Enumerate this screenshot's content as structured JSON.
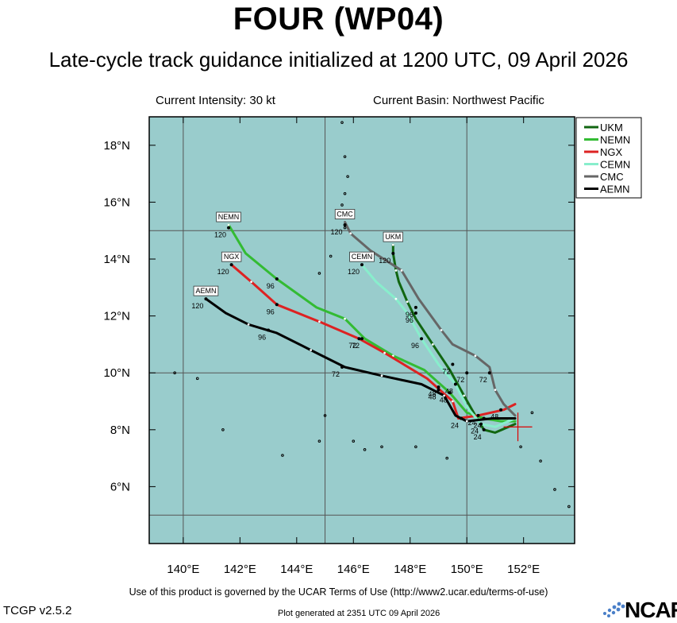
{
  "header": {
    "title": "FOUR (WP04)",
    "subtitle": "Late-cycle track guidance initialized at 1200 UTC, 09 April 2026",
    "current_intensity": "Current Intensity: 30 kt",
    "current_basin": "Current Basin: Northwest Pacific"
  },
  "footer": {
    "terms": "Use of this product is governed by the UCAR Terms of Use (http://www2.ucar.edu/terms-of-use)",
    "version": "TCGP v2.5.2",
    "generated": "Plot generated at 2351 UTC  09 April 2026",
    "logo_text": "NCAR"
  },
  "chart_data": {
    "type": "line",
    "xlim": [
      138.8,
      153.8
    ],
    "ylim": [
      4.0,
      19.0
    ],
    "x_ticks": [
      140,
      142,
      144,
      146,
      148,
      150,
      152
    ],
    "x_tick_labels": [
      "140°E",
      "142°E",
      "144°E",
      "146°E",
      "148°E",
      "150°E",
      "152°E"
    ],
    "y_ticks": [
      6,
      8,
      10,
      12,
      14,
      16,
      18
    ],
    "y_tick_labels": [
      "6°N",
      "8°N",
      "10°N",
      "12°N",
      "14°N",
      "16°N",
      "18°N"
    ],
    "grid_lon": [
      140,
      145,
      150
    ],
    "grid_lat": [
      5,
      10,
      15
    ],
    "background_color": "#99cccc",
    "legend_position": "outside-right-top",
    "current_position": {
      "lon": 151.8,
      "lat": 8.1,
      "color": "#dd0000"
    },
    "series": [
      {
        "name": "UKM",
        "color": "#116611",
        "lon": [
          151.7,
          151.0,
          150.6,
          150.3,
          149.9,
          149.4,
          148.8,
          148.2,
          147.9,
          147.6,
          147.5,
          147.4,
          147.4
        ],
        "lat": [
          8.2,
          7.9,
          8.0,
          8.5,
          9.2,
          10.1,
          11.0,
          11.9,
          12.5,
          13.2,
          13.6,
          14.2,
          14.5
        ],
        "marks": [
          {
            "lon": 150.6,
            "lat": 8.0,
            "label": "24"
          },
          {
            "lon": 150.0,
            "lat": 10.0,
            "label": "72"
          },
          {
            "lon": 148.2,
            "lat": 12.1,
            "label": "96"
          },
          {
            "lon": 147.4,
            "lat": 14.2,
            "label": "120"
          }
        ]
      },
      {
        "name": "NEMN",
        "color": "#33bb33",
        "lon": [
          151.7,
          151.2,
          150.6,
          150.0,
          149.4,
          148.5,
          147.4,
          146.4,
          145.7,
          144.7,
          143.3,
          142.2,
          141.6
        ],
        "lat": [
          8.3,
          8.3,
          8.4,
          8.6,
          9.3,
          10.1,
          10.6,
          11.2,
          11.9,
          12.3,
          13.3,
          14.2,
          15.2
        ],
        "marks": [
          {
            "lon": 150.6,
            "lat": 8.4,
            "label": "24"
          },
          {
            "lon": 149.4,
            "lat": 9.3,
            "label": "48"
          },
          {
            "lon": 146.3,
            "lat": 11.2,
            "label": "72"
          },
          {
            "lon": 143.3,
            "lat": 13.3,
            "label": "96"
          },
          {
            "lon": 141.6,
            "lat": 15.1,
            "label": "120"
          }
        ]
      },
      {
        "name": "NGX",
        "color": "#dd2222",
        "lon": [
          151.7,
          151.3,
          150.4,
          149.7,
          149.5,
          148.6,
          147.1,
          146.2,
          144.8,
          143.3,
          142.4,
          141.7
        ],
        "lat": [
          8.9,
          8.7,
          8.5,
          8.4,
          9.0,
          9.8,
          10.7,
          11.2,
          11.8,
          12.4,
          13.2,
          13.8
        ],
        "marks": [
          {
            "lon": 150.4,
            "lat": 8.5,
            "label": "24"
          },
          {
            "lon": 149.0,
            "lat": 9.5,
            "label": "48"
          },
          {
            "lon": 146.2,
            "lat": 11.2,
            "label": "72"
          },
          {
            "lon": 143.3,
            "lat": 12.4,
            "label": "96"
          },
          {
            "lon": 141.7,
            "lat": 13.8,
            "label": "120"
          }
        ]
      },
      {
        "name": "CEMN",
        "color": "#88eecc",
        "lon": [
          151.7,
          151.0,
          150.5,
          150.0,
          149.6,
          149.0,
          148.4,
          147.9,
          147.5,
          146.8,
          146.3
        ],
        "lat": [
          8.4,
          8.1,
          8.2,
          8.8,
          9.6,
          10.3,
          11.2,
          12.1,
          12.6,
          13.2,
          13.8
        ],
        "marks": [
          {
            "lon": 150.5,
            "lat": 8.2,
            "label": "24"
          },
          {
            "lon": 149.6,
            "lat": 9.6,
            "label": "48"
          },
          {
            "lon": 149.5,
            "lat": 10.3,
            "label": "72"
          },
          {
            "lon": 148.4,
            "lat": 11.2,
            "label": "96"
          },
          {
            "lon": 146.3,
            "lat": 13.8,
            "label": "120"
          }
        ]
      },
      {
        "name": "CMC",
        "color": "#666666",
        "lon": [
          151.7,
          151.3,
          151.0,
          150.8,
          150.3,
          149.5,
          149.1,
          148.3,
          147.7,
          146.6,
          145.9,
          145.7
        ],
        "lat": [
          8.5,
          8.9,
          9.4,
          10.2,
          10.6,
          11.0,
          11.5,
          12.6,
          13.6,
          14.3,
          14.9,
          15.3
        ],
        "marks": [
          {
            "lon": 151.2,
            "lat": 8.7,
            "label": "48"
          },
          {
            "lon": 150.8,
            "lat": 10.0,
            "label": "72"
          },
          {
            "lon": 148.2,
            "lat": 12.3,
            "label": "96"
          },
          {
            "lon": 145.7,
            "lat": 15.2,
            "label": "120"
          }
        ]
      },
      {
        "name": "AEMN",
        "color": "#000000",
        "lon": [
          151.7,
          150.9,
          150.0,
          149.6,
          149.2,
          148.4,
          147.0,
          145.7,
          144.5,
          143.3,
          142.3,
          141.5,
          140.8
        ],
        "lat": [
          8.4,
          8.4,
          8.3,
          8.5,
          9.2,
          9.6,
          9.9,
          10.2,
          10.8,
          11.4,
          11.7,
          12.1,
          12.6
        ],
        "marks": [
          {
            "lon": 149.8,
            "lat": 8.4,
            "label": "24"
          },
          {
            "lon": 149.0,
            "lat": 9.4,
            "label": "48"
          },
          {
            "lon": 145.6,
            "lat": 10.2,
            "label": "72"
          },
          {
            "lon": 143.0,
            "lat": 11.5,
            "label": "96"
          },
          {
            "lon": 140.8,
            "lat": 12.6,
            "label": "120"
          }
        ]
      }
    ],
    "end_labels": [
      {
        "name": "NEMN",
        "lon": 141.6,
        "lat": 15.2
      },
      {
        "name": "NGX",
        "lon": 141.7,
        "lat": 13.8
      },
      {
        "name": "AEMN",
        "lon": 140.8,
        "lat": 12.6
      },
      {
        "name": "CMC",
        "lon": 145.7,
        "lat": 15.3
      },
      {
        "name": "UKM",
        "lon": 147.4,
        "lat": 14.5
      },
      {
        "name": "CEMN",
        "lon": 146.3,
        "lat": 13.8
      }
    ],
    "islands": [
      {
        "lon": 145.6,
        "lat": 18.8
      },
      {
        "lon": 145.7,
        "lat": 17.6
      },
      {
        "lon": 145.8,
        "lat": 16.9
      },
      {
        "lon": 145.7,
        "lat": 16.3
      },
      {
        "lon": 145.6,
        "lat": 15.9
      },
      {
        "lon": 145.7,
        "lat": 15.1
      },
      {
        "lon": 145.2,
        "lat": 14.1
      },
      {
        "lon": 144.8,
        "lat": 13.5
      },
      {
        "lon": 139.7,
        "lat": 10.0
      },
      {
        "lon": 140.5,
        "lat": 9.8
      },
      {
        "lon": 141.4,
        "lat": 8.0
      },
      {
        "lon": 143.5,
        "lat": 7.1
      },
      {
        "lon": 144.8,
        "lat": 7.6
      },
      {
        "lon": 146.0,
        "lat": 7.6
      },
      {
        "lon": 146.4,
        "lat": 7.3
      },
      {
        "lon": 147.0,
        "lat": 7.4
      },
      {
        "lon": 148.2,
        "lat": 7.4
      },
      {
        "lon": 149.3,
        "lat": 7.0
      },
      {
        "lon": 151.9,
        "lat": 7.4
      },
      {
        "lon": 152.6,
        "lat": 6.9
      },
      {
        "lon": 153.1,
        "lat": 5.9
      },
      {
        "lon": 153.6,
        "lat": 5.3
      },
      {
        "lon": 152.3,
        "lat": 8.6
      },
      {
        "lon": 145.0,
        "lat": 8.5
      }
    ]
  }
}
